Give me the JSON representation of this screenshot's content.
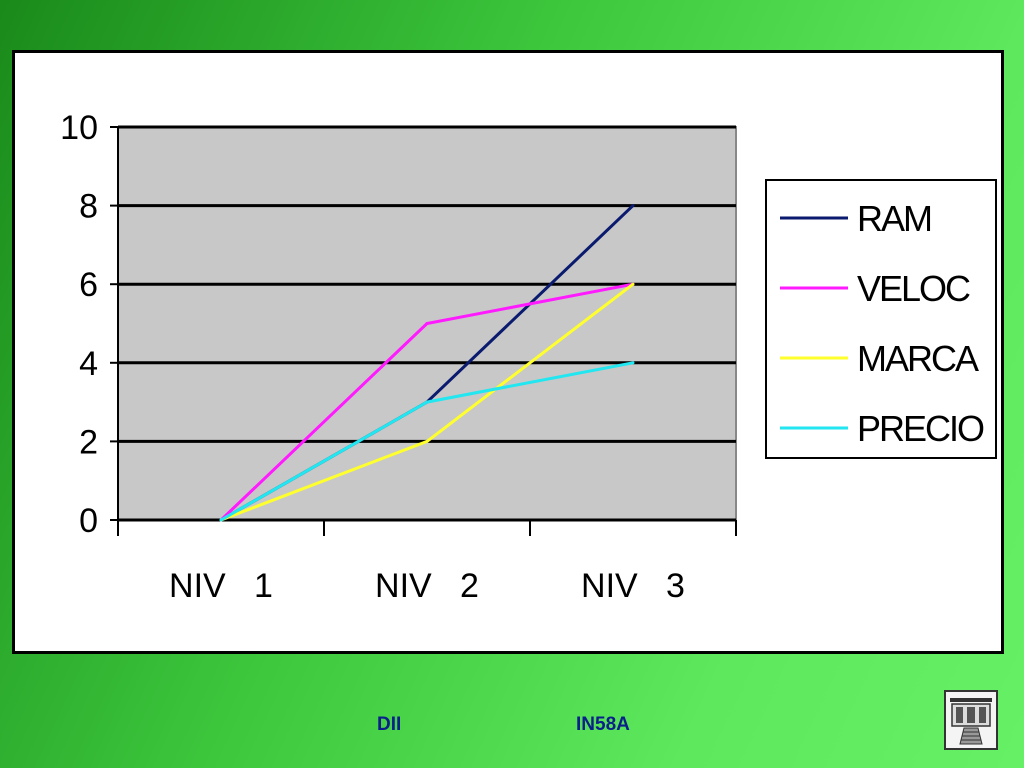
{
  "chart_data": {
    "type": "line",
    "categories": [
      "NIV   1",
      "NIV   2",
      "NIV   3"
    ],
    "yticks": [
      "0",
      "2",
      "4",
      "6",
      "8",
      "10"
    ],
    "ylim": [
      0,
      10
    ],
    "grid": true,
    "legend_position": "right",
    "series": [
      {
        "name": "RAM",
        "color": "#0a1a6e",
        "values": [
          0,
          3,
          8
        ]
      },
      {
        "name": "VELOC",
        "color": "#ff1aff",
        "values": [
          0,
          5,
          6
        ]
      },
      {
        "name": "MARCA",
        "color": "#ffff2e",
        "values": [
          0,
          2,
          6
        ]
      },
      {
        "name": "PRECIO",
        "color": "#22e6f0",
        "values": [
          0,
          3,
          4
        ]
      }
    ]
  },
  "footer": {
    "left": "DII",
    "right": "IN58A"
  },
  "logo_icon": "building-logo-icon"
}
